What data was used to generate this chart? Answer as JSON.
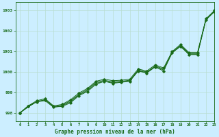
{
  "title": "Graphe pression niveau de la mer (hPa)",
  "bg_color": "#cceeff",
  "grid_color": "#b8ddd0",
  "line_color": "#1a6b1a",
  "marker_color": "#1a6b1a",
  "xlim": [
    -0.5,
    23
  ],
  "ylim": [
    997.6,
    1003.4
  ],
  "yticks": [
    998,
    999,
    1000,
    1001,
    1002,
    1003
  ],
  "xticks": [
    0,
    1,
    2,
    3,
    4,
    5,
    6,
    7,
    8,
    9,
    10,
    11,
    12,
    13,
    14,
    15,
    16,
    17,
    18,
    19,
    20,
    21,
    22,
    23
  ],
  "series1": [
    998.0,
    998.35,
    998.55,
    998.65,
    998.3,
    998.32,
    998.5,
    998.85,
    999.05,
    999.4,
    999.55,
    999.45,
    999.5,
    999.55,
    1000.05,
    999.95,
    1000.25,
    1000.05,
    1000.95,
    1001.25,
    1000.85,
    1000.85,
    1002.55,
    1002.95
  ],
  "series2": [
    998.0,
    998.35,
    998.6,
    998.7,
    998.35,
    998.42,
    998.65,
    998.98,
    999.2,
    999.55,
    999.65,
    999.58,
    999.6,
    999.65,
    1000.15,
    1000.05,
    1000.35,
    1000.2,
    1001.0,
    1001.35,
    1000.95,
    1000.95,
    1002.6,
    1003.0
  ],
  "series3": [
    998.0,
    998.3,
    998.55,
    998.65,
    998.32,
    998.38,
    998.6,
    998.92,
    999.15,
    999.5,
    999.6,
    999.52,
    999.55,
    999.6,
    1000.1,
    1000.0,
    1000.3,
    1000.15,
    1000.97,
    1001.3,
    1000.92,
    1000.92,
    1002.58,
    1002.98
  ],
  "series4": [
    998.0,
    998.3,
    998.55,
    998.6,
    998.28,
    998.35,
    998.55,
    998.88,
    999.1,
    999.45,
    999.55,
    999.48,
    999.52,
    999.57,
    1000.07,
    999.97,
    1000.27,
    1000.1,
    1000.93,
    1001.27,
    1000.88,
    1000.88,
    1002.55,
    1002.95
  ]
}
